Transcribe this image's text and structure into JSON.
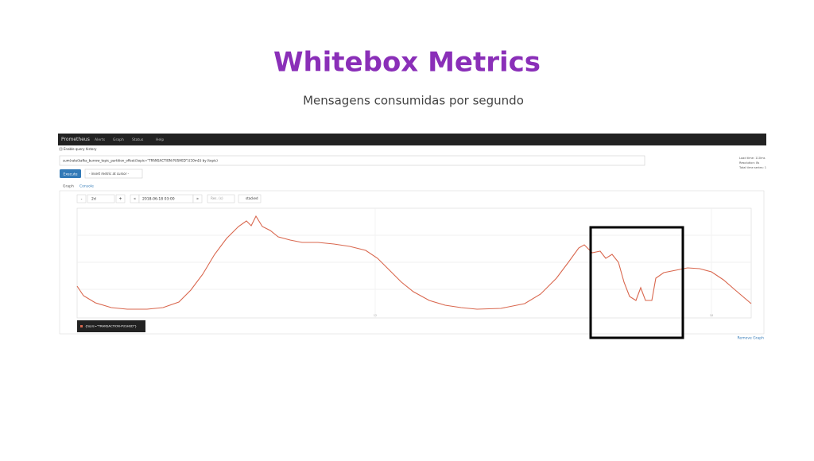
{
  "slide": {
    "title": "Whitebox Metrics",
    "subtitle": "Mensagens consumidas por segundo"
  },
  "navbar": {
    "brand": "Prometheus",
    "links": [
      "Alerts",
      "Graph",
      "Status",
      "Help"
    ]
  },
  "query": {
    "history": "Enable query history",
    "expression": "sum(rate(kafka_burrow_topic_partition_offset{topic=\"TRANSACTION-PUSHED\"}[10m])) by (topic)",
    "stats": [
      "Load time: 110ms",
      "Resolution: 8s",
      "Total time series: 1"
    ],
    "execute": "Execute",
    "metric_select": "- insert metric at cursor -"
  },
  "tabs": [
    "Graph",
    "Console"
  ],
  "controls": {
    "minus": "-",
    "range": "2d",
    "plus": "+",
    "back": "«",
    "end_time": "2018-06-18 03:00",
    "forward": "»",
    "resolution": "Res. (s)",
    "stacked": "stacked"
  },
  "graph": {
    "x_labels": [
      "12",
      "18"
    ],
    "legend": "{topic=\"TRANSACTION-PUSHED\"}",
    "remove": "Remove Graph"
  }
}
